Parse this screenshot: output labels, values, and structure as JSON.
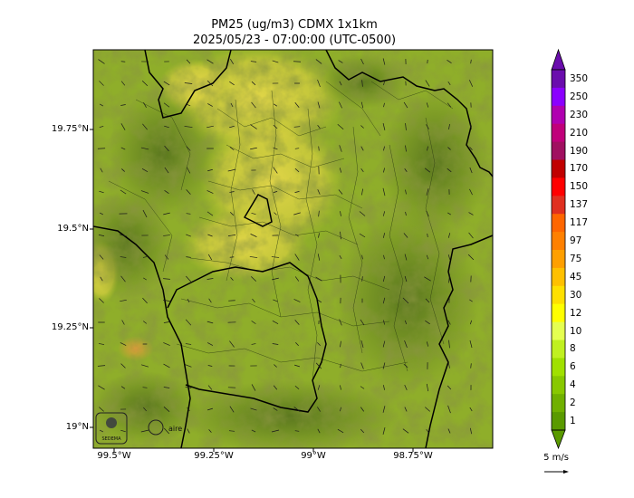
{
  "title": "PM25 (ug/m3) CDMX 1x1km",
  "subtitle": "2025/05/23 - 07:00:00 (UTC-0500)",
  "lat_ticks": [
    {
      "label": "19.75°N",
      "lat": 19.75
    },
    {
      "label": "19.5°N",
      "lat": 19.5
    },
    {
      "label": "19.25°N",
      "lat": 19.25
    },
    {
      "label": "19°N",
      "lat": 19.0
    }
  ],
  "lon_ticks": [
    {
      "label": "99.5°W",
      "lon": -99.5
    },
    {
      "label": "99.25°W",
      "lon": -99.25
    },
    {
      "label": "99°W",
      "lon": -99.0
    },
    {
      "label": "98.75°W",
      "lon": -98.75
    }
  ],
  "colorbar": {
    "labels": [
      "350",
      "250",
      "230",
      "210",
      "190",
      "170",
      "150",
      "137",
      "117",
      "97",
      "75",
      "45",
      "30",
      "12",
      "10",
      "8",
      "6",
      "4",
      "2",
      "1"
    ],
    "colors": [
      "#6a0dad",
      "#8b00ff",
      "#b000b0",
      "#c0007a",
      "#a01060",
      "#c00000",
      "#ff0000",
      "#e03020",
      "#ff6600",
      "#ff8000",
      "#ff9f00",
      "#ffc000",
      "#ffe000",
      "#ffff00",
      "#e5ff50",
      "#c0f020",
      "#a0e000",
      "#88c800",
      "#70b000",
      "#5a9a00"
    ]
  },
  "wind_scale": {
    "label": "5 m/s"
  },
  "logos": [
    {
      "name": "sedema-logo",
      "text": "SEDEMA"
    },
    {
      "name": "aire-logo",
      "text": "aire"
    }
  ]
}
